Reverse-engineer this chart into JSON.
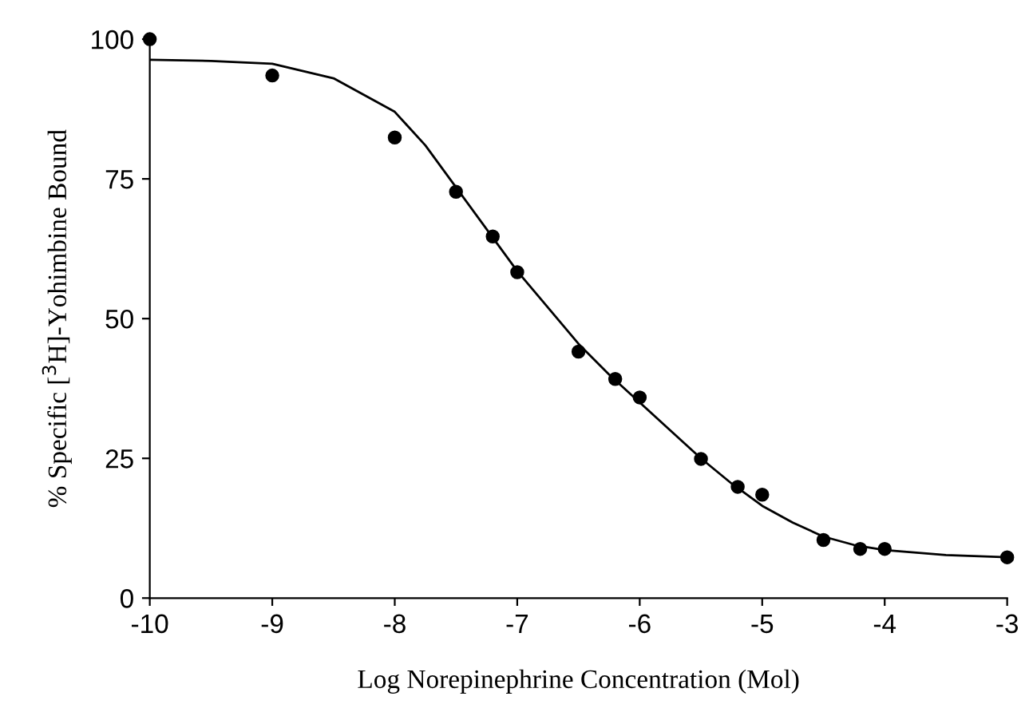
{
  "chart_data": {
    "type": "scatter",
    "xlabel": "Log Norepinephrine Concentration (Mol)",
    "ylabel": "% Specific [$^{3}$H]-Yohimbine Bound",
    "series": [
      {
        "color": "#000000",
        "marker": "circle",
        "x": [
          -10,
          -9,
          -8,
          -7.5,
          -7.2,
          -7,
          -6.5,
          -6.2,
          -6,
          -5.5,
          -5.2,
          -5,
          -4.5,
          -4.2,
          -4,
          -3
        ],
        "values": [
          100,
          93.5,
          82.4,
          72.7,
          64.7,
          58.3,
          44.1,
          39.2,
          35.9,
          24.9,
          19.9,
          18.5,
          10.4,
          8.8,
          8.8,
          7.3
        ]
      },
      {
        "type": "line",
        "color": "#000000",
        "marker": "none",
        "line_style": "solid",
        "x": [
          -10,
          -9.5,
          -9,
          -8.5,
          -8,
          -7.75,
          -7.5,
          -7.25,
          -7,
          -6.75,
          -6.5,
          -6.25,
          -6,
          -5.75,
          -5.5,
          -5.25,
          -5,
          -4.75,
          -4.5,
          -4.25,
          -4,
          -3.5,
          -3
        ],
        "values": [
          96.3,
          96.1,
          95.6,
          93,
          87,
          81,
          73.5,
          66,
          58.5,
          52,
          45.5,
          40,
          35,
          30,
          25,
          20.5,
          16.5,
          13.5,
          11,
          9.5,
          8.6,
          7.7,
          7.3
        ]
      }
    ],
    "xlim": [
      -10,
      -3
    ],
    "ylim": [
      0,
      100
    ],
    "xticks": [
      -10,
      -9,
      -8,
      -7,
      -6,
      -5,
      -4,
      -3
    ],
    "yticks": [
      0,
      25,
      50,
      75,
      100
    ],
    "grid": false,
    "legend": false
  }
}
